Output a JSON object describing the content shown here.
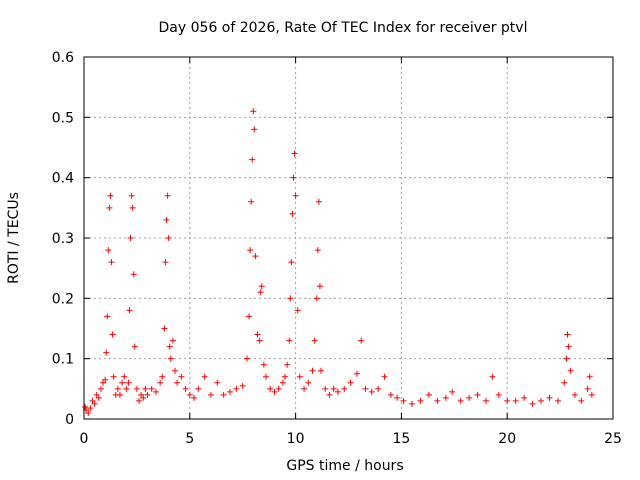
{
  "chart_data": {
    "type": "scatter",
    "title": "Day 056 of 2026, Rate Of TEC Index for receiver ptvl",
    "xlabel": "GPS time / hours",
    "ylabel": "ROTI / TECUs",
    "xlim": [
      0,
      25
    ],
    "ylim": [
      0,
      0.6
    ],
    "xticks": [
      "0",
      "5",
      "10",
      "15",
      "20",
      "25"
    ],
    "yticks": [
      "0",
      "0.1",
      "0.2",
      "0.3",
      "0.4",
      "0.5",
      "0.6"
    ],
    "grid": true,
    "marker": "plus",
    "color": "#ff0000",
    "series": [
      {
        "points": [
          [
            0.05,
            0.02
          ],
          [
            0.1,
            0.015
          ],
          [
            0.2,
            0.01
          ],
          [
            0.3,
            0.018
          ],
          [
            0.4,
            0.03
          ],
          [
            0.5,
            0.025
          ],
          [
            0.6,
            0.04
          ],
          [
            0.7,
            0.035
          ],
          [
            0.8,
            0.05
          ],
          [
            0.9,
            0.06
          ],
          [
            1.0,
            0.065
          ],
          [
            1.05,
            0.11
          ],
          [
            1.1,
            0.17
          ],
          [
            1.15,
            0.28
          ],
          [
            1.2,
            0.35
          ],
          [
            1.25,
            0.37
          ],
          [
            1.3,
            0.26
          ],
          [
            1.35,
            0.14
          ],
          [
            1.4,
            0.07
          ],
          [
            1.5,
            0.04
          ],
          [
            1.6,
            0.05
          ],
          [
            1.7,
            0.04
          ],
          [
            1.8,
            0.06
          ],
          [
            1.9,
            0.07
          ],
          [
            2.0,
            0.05
          ],
          [
            2.1,
            0.06
          ],
          [
            2.15,
            0.18
          ],
          [
            2.2,
            0.3
          ],
          [
            2.25,
            0.37
          ],
          [
            2.3,
            0.35
          ],
          [
            2.35,
            0.24
          ],
          [
            2.4,
            0.12
          ],
          [
            2.5,
            0.05
          ],
          [
            2.6,
            0.03
          ],
          [
            2.7,
            0.04
          ],
          [
            2.8,
            0.035
          ],
          [
            2.9,
            0.05
          ],
          [
            3.0,
            0.04
          ],
          [
            3.2,
            0.05
          ],
          [
            3.4,
            0.045
          ],
          [
            3.6,
            0.06
          ],
          [
            3.7,
            0.07
          ],
          [
            3.8,
            0.15
          ],
          [
            3.85,
            0.26
          ],
          [
            3.9,
            0.33
          ],
          [
            3.95,
            0.37
          ],
          [
            4.0,
            0.3
          ],
          [
            4.05,
            0.12
          ],
          [
            4.1,
            0.1
          ],
          [
            4.2,
            0.13
          ],
          [
            4.3,
            0.08
          ],
          [
            4.4,
            0.06
          ],
          [
            4.6,
            0.07
          ],
          [
            4.8,
            0.05
          ],
          [
            5.0,
            0.04
          ],
          [
            5.2,
            0.035
          ],
          [
            5.4,
            0.05
          ],
          [
            5.7,
            0.07
          ],
          [
            6.0,
            0.04
          ],
          [
            6.3,
            0.06
          ],
          [
            6.6,
            0.04
          ],
          [
            6.9,
            0.045
          ],
          [
            7.2,
            0.05
          ],
          [
            7.5,
            0.055
          ],
          [
            7.7,
            0.1
          ],
          [
            7.8,
            0.17
          ],
          [
            7.85,
            0.28
          ],
          [
            7.9,
            0.36
          ],
          [
            7.95,
            0.43
          ],
          [
            8.0,
            0.51
          ],
          [
            8.05,
            0.48
          ],
          [
            8.1,
            0.27
          ],
          [
            8.2,
            0.14
          ],
          [
            8.3,
            0.13
          ],
          [
            8.35,
            0.21
          ],
          [
            8.4,
            0.22
          ],
          [
            8.5,
            0.09
          ],
          [
            8.6,
            0.07
          ],
          [
            8.8,
            0.05
          ],
          [
            9.0,
            0.045
          ],
          [
            9.2,
            0.05
          ],
          [
            9.4,
            0.06
          ],
          [
            9.5,
            0.07
          ],
          [
            9.6,
            0.09
          ],
          [
            9.7,
            0.13
          ],
          [
            9.75,
            0.2
          ],
          [
            9.8,
            0.26
          ],
          [
            9.85,
            0.34
          ],
          [
            9.9,
            0.4
          ],
          [
            9.95,
            0.44
          ],
          [
            10.0,
            0.37
          ],
          [
            10.1,
            0.18
          ],
          [
            10.2,
            0.07
          ],
          [
            10.4,
            0.05
          ],
          [
            10.6,
            0.06
          ],
          [
            10.8,
            0.08
          ],
          [
            10.9,
            0.13
          ],
          [
            11.0,
            0.2
          ],
          [
            11.05,
            0.28
          ],
          [
            11.1,
            0.36
          ],
          [
            11.15,
            0.22
          ],
          [
            11.2,
            0.08
          ],
          [
            11.4,
            0.05
          ],
          [
            11.6,
            0.04
          ],
          [
            11.8,
            0.05
          ],
          [
            12.0,
            0.045
          ],
          [
            12.3,
            0.05
          ],
          [
            12.6,
            0.06
          ],
          [
            12.9,
            0.075
          ],
          [
            13.1,
            0.13
          ],
          [
            13.3,
            0.05
          ],
          [
            13.6,
            0.045
          ],
          [
            13.9,
            0.05
          ],
          [
            14.2,
            0.07
          ],
          [
            14.5,
            0.04
          ],
          [
            14.8,
            0.035
          ],
          [
            15.1,
            0.03
          ],
          [
            15.5,
            0.025
          ],
          [
            15.9,
            0.03
          ],
          [
            16.3,
            0.04
          ],
          [
            16.7,
            0.03
          ],
          [
            17.1,
            0.035
          ],
          [
            17.4,
            0.045
          ],
          [
            17.8,
            0.03
          ],
          [
            18.2,
            0.035
          ],
          [
            18.6,
            0.04
          ],
          [
            19.0,
            0.03
          ],
          [
            19.3,
            0.07
          ],
          [
            19.6,
            0.04
          ],
          [
            20.0,
            0.03
          ],
          [
            20.4,
            0.03
          ],
          [
            20.8,
            0.035
          ],
          [
            21.2,
            0.025
          ],
          [
            21.6,
            0.03
          ],
          [
            22.0,
            0.035
          ],
          [
            22.4,
            0.03
          ],
          [
            22.7,
            0.06
          ],
          [
            22.8,
            0.1
          ],
          [
            22.85,
            0.14
          ],
          [
            22.9,
            0.12
          ],
          [
            23.0,
            0.08
          ],
          [
            23.2,
            0.04
          ],
          [
            23.5,
            0.03
          ],
          [
            23.8,
            0.05
          ],
          [
            23.9,
            0.07
          ],
          [
            24.0,
            0.04
          ]
        ]
      }
    ]
  }
}
